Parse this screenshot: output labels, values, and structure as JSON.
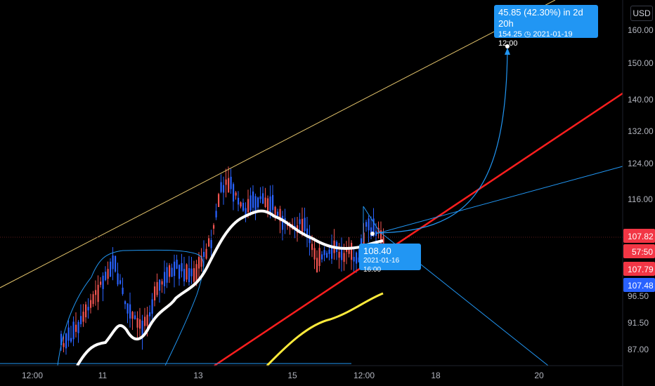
{
  "currency": "USD",
  "colors": {
    "background": "#000000",
    "up": "#ef5350",
    "down": "#2962ff",
    "blue_line": "#2196f3",
    "red_line": "#ff1e1e",
    "yellow_line": "#ffeb3b",
    "channel_line": "#e2c36b",
    "ma_line": "#ffffff"
  },
  "projection_callout": {
    "line1": "45.85 (42.30%) in 2d 20h",
    "line2_price": "154.25",
    "line2_time": "2021-01-19  12:00"
  },
  "current_callout": {
    "price": "108.40",
    "time": "2021-01-16 16:00"
  },
  "price_badges": [
    {
      "label": "107.82",
      "color": "#f23645"
    },
    {
      "label": "57:50",
      "color": "#f23645"
    },
    {
      "label": "107.79",
      "color": "#f23645"
    },
    {
      "label": "107.48",
      "color": "#2962ff"
    }
  ],
  "chart_data": {
    "type": "candlestick",
    "y_ticks": [
      "160.00",
      "150.00",
      "140.00",
      "132.00",
      "124.00",
      "116.00",
      "96.50",
      "91.50",
      "87.00"
    ],
    "x_ticks": [
      "12:00",
      "11",
      "13",
      "15",
      "12:00",
      "18",
      "20"
    ],
    "ylim": [
      84,
      166
    ],
    "y_axis_scale": "log",
    "grid": false,
    "overlays": [
      {
        "name": "white moving average",
        "color": "#ffffff"
      },
      {
        "name": "red trend line",
        "color": "#ff1e1e"
      },
      {
        "name": "yellow moving average",
        "color": "#ffeb3b"
      },
      {
        "name": "blue projection path",
        "color": "#2196f3",
        "target": 154.25
      }
    ],
    "last_price": 107.82,
    "low_visible": 93.5,
    "high_visible": 120.5
  }
}
